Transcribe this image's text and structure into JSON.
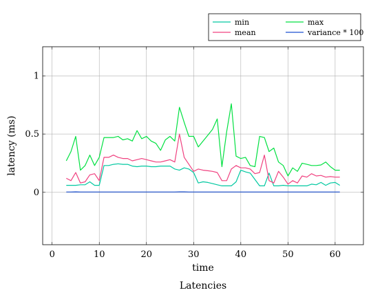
{
  "chart_data": {
    "type": "line",
    "title": "",
    "caption": "Latencies",
    "xlabel": "time",
    "ylabel": "latency (ms)",
    "xlim": [
      -2,
      66
    ],
    "ylim": [
      -0.45,
      1.25
    ],
    "xticks": [
      0,
      10,
      20,
      30,
      40,
      50,
      60
    ],
    "yticks": [
      0,
      0.5,
      1
    ],
    "ytick_labels": [
      "0",
      "0.5",
      "1"
    ],
    "grid": true,
    "legend_placement": "top-right, outside above plot",
    "legend_columns": 2,
    "x": [
      3,
      4,
      5,
      6,
      7,
      8,
      9,
      10,
      11,
      12,
      13,
      14,
      15,
      16,
      17,
      18,
      19,
      20,
      21,
      22,
      23,
      24,
      25,
      26,
      27,
      28,
      29,
      30,
      31,
      32,
      33,
      34,
      35,
      36,
      37,
      38,
      39,
      40,
      41,
      42,
      43,
      44,
      45,
      46,
      47,
      48,
      49,
      50,
      51,
      52,
      53,
      54,
      55,
      56,
      57,
      58,
      59,
      60,
      61
    ],
    "series": [
      {
        "name": "min",
        "color": "#00c8a0",
        "values": [
          0.06,
          0.06,
          0.06,
          0.065,
          0.065,
          0.09,
          0.06,
          0.06,
          0.23,
          0.23,
          0.24,
          0.245,
          0.24,
          0.24,
          0.225,
          0.22,
          0.225,
          0.225,
          0.22,
          0.22,
          0.225,
          0.225,
          0.225,
          0.2,
          0.19,
          0.21,
          0.2,
          0.17,
          0.08,
          0.09,
          0.085,
          0.075,
          0.065,
          0.055,
          0.055,
          0.055,
          0.09,
          0.19,
          0.175,
          0.165,
          0.11,
          0.055,
          0.055,
          0.165,
          0.055,
          0.055,
          0.06,
          0.055,
          0.055,
          0.055,
          0.055,
          0.055,
          0.07,
          0.065,
          0.085,
          0.06,
          0.08,
          0.085,
          0.06
        ]
      },
      {
        "name": "max",
        "color": "#00e040",
        "values": [
          0.27,
          0.35,
          0.48,
          0.19,
          0.23,
          0.32,
          0.23,
          0.3,
          0.47,
          0.47,
          0.47,
          0.48,
          0.45,
          0.46,
          0.44,
          0.53,
          0.46,
          0.48,
          0.44,
          0.42,
          0.36,
          0.45,
          0.48,
          0.44,
          0.73,
          0.6,
          0.48,
          0.48,
          0.39,
          0.44,
          0.49,
          0.54,
          0.63,
          0.22,
          0.52,
          0.76,
          0.31,
          0.29,
          0.3,
          0.23,
          0.22,
          0.48,
          0.47,
          0.35,
          0.38,
          0.26,
          0.23,
          0.14,
          0.21,
          0.18,
          0.25,
          0.24,
          0.23,
          0.23,
          0.235,
          0.26,
          0.22,
          0.19,
          0.19
        ]
      },
      {
        "name": "mean",
        "color": "#f0407f",
        "values": [
          0.12,
          0.1,
          0.17,
          0.08,
          0.09,
          0.15,
          0.16,
          0.1,
          0.3,
          0.3,
          0.32,
          0.3,
          0.29,
          0.29,
          0.27,
          0.28,
          0.29,
          0.28,
          0.27,
          0.26,
          0.26,
          0.27,
          0.28,
          0.26,
          0.5,
          0.3,
          0.24,
          0.18,
          0.2,
          0.19,
          0.185,
          0.18,
          0.17,
          0.1,
          0.1,
          0.2,
          0.23,
          0.21,
          0.21,
          0.2,
          0.16,
          0.17,
          0.32,
          0.1,
          0.08,
          0.18,
          0.13,
          0.07,
          0.1,
          0.08,
          0.14,
          0.13,
          0.16,
          0.14,
          0.145,
          0.13,
          0.135,
          0.13,
          0.13
        ]
      },
      {
        "name": "variance * 100",
        "color": "#1a4fd0",
        "values": [
          0.003,
          0.003,
          0.004,
          0.003,
          0.003,
          0.003,
          0.003,
          0.003,
          0.003,
          0.003,
          0.003,
          0.003,
          0.003,
          0.003,
          0.003,
          0.003,
          0.003,
          0.003,
          0.003,
          0.003,
          0.003,
          0.003,
          0.003,
          0.003,
          0.004,
          0.004,
          0.003,
          0.003,
          0.003,
          0.003,
          0.003,
          0.003,
          0.003,
          0.003,
          0.003,
          0.003,
          0.003,
          0.003,
          0.003,
          0.003,
          0.003,
          0.003,
          0.003,
          0.003,
          0.003,
          0.003,
          0.003,
          0.003,
          0.003,
          0.003,
          0.003,
          0.003,
          0.003,
          0.003,
          0.003,
          0.003,
          0.003,
          0.003,
          0.003
        ]
      }
    ]
  }
}
